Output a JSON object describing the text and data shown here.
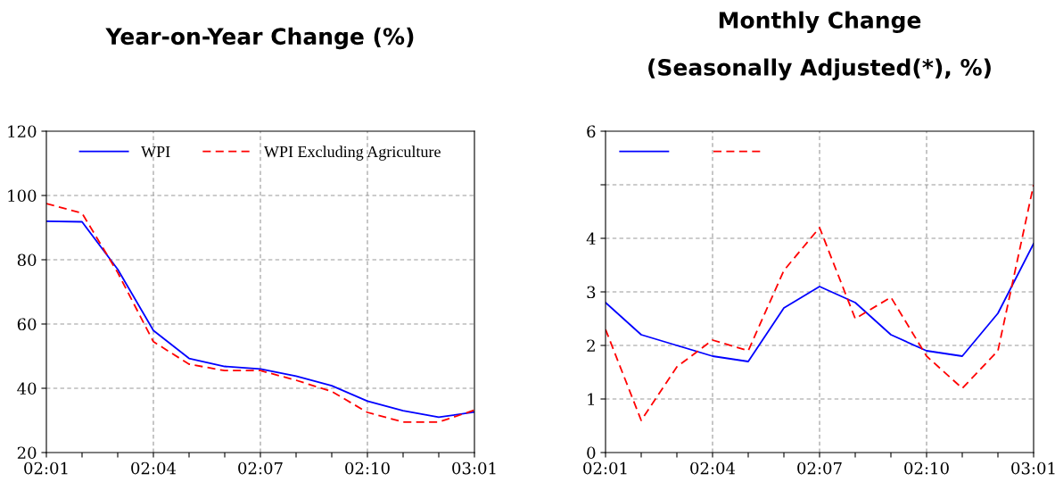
{
  "chart_data": [
    {
      "type": "line",
      "title": "Year-on-Year Change (%)",
      "categories": [
        "02:01",
        null,
        null,
        "02:04",
        null,
        null,
        "02:07",
        null,
        null,
        "02:10",
        null,
        null,
        "03:01"
      ],
      "series": [
        {
          "name": "WPI",
          "color": "#0000ff",
          "line_style": "solid",
          "values": [
            92,
            91.8,
            77,
            58,
            49.3,
            46.8,
            46,
            43.8,
            40.8,
            36,
            33,
            31,
            32.6
          ]
        },
        {
          "name": "WPI Excluding Agriculture",
          "color": "#ff0000",
          "line_style": "dashed",
          "values": [
            97.5,
            94.5,
            76,
            54.5,
            47.5,
            45.5,
            45.5,
            42.5,
            39,
            32.5,
            29.5,
            29.5,
            33.2
          ]
        }
      ],
      "ylim": [
        20,
        120
      ],
      "yticks": [
        20,
        40,
        60,
        80,
        100,
        120
      ],
      "grid": true,
      "legend": "top"
    },
    {
      "type": "line",
      "title": "Monthly Change\n(Seasonally Adjusted(*), %)",
      "categories": [
        "02:01",
        null,
        null,
        "02:04",
        null,
        null,
        "02:07",
        null,
        null,
        "02:10",
        null,
        null,
        "03:01"
      ],
      "series": [
        {
          "color": "#0000ff",
          "line_style": "solid",
          "values": [
            2.8,
            2.2,
            2.0,
            1.8,
            1.7,
            2.7,
            3.1,
            2.8,
            2.2,
            1.9,
            1.8,
            2.6,
            3.9
          ]
        },
        {
          "color": "#ff0000",
          "line_style": "dashed",
          "values": [
            2.3,
            0.6,
            1.6,
            2.1,
            1.9,
            3.4,
            4.2,
            2.5,
            2.9,
            1.8,
            1.2,
            1.9,
            5.0
          ]
        }
      ],
      "ylim": [
        0,
        6
      ],
      "yticks": [
        0,
        1,
        2,
        3,
        4,
        {
          "value": 5,
          "label": null
        },
        6
      ],
      "grid": true,
      "legend": "top left"
    }
  ]
}
